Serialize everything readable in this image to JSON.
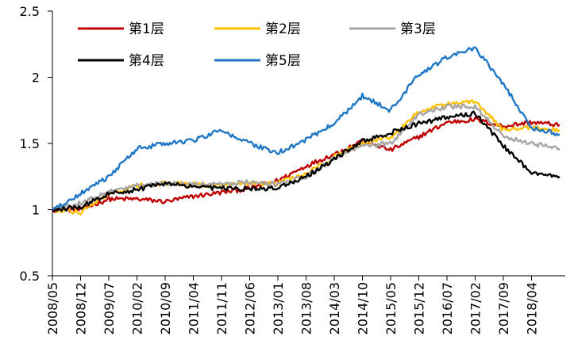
{
  "chart_data": {
    "type": "line",
    "title": "",
    "xlabel": "",
    "ylabel": "",
    "ylim": [
      0.5,
      2.5
    ],
    "yticks": [
      "0.5",
      "1",
      "1.5",
      "2",
      "2.5"
    ],
    "xticks": [
      "2008/05",
      "2008/12",
      "2009/07",
      "2010/02",
      "2010/09",
      "2011/04",
      "2011/11",
      "2012/06",
      "2013/01",
      "2013/08",
      "2014/03",
      "2014/10",
      "2015/05",
      "2015/12",
      "2016/07",
      "2017/02",
      "2017/09",
      "2018/04"
    ],
    "grid": false,
    "legend_position": "top",
    "x": [
      "2008/05",
      "2008/12",
      "2009/07",
      "2010/02",
      "2010/09",
      "2011/04",
      "2011/11",
      "2012/06",
      "2013/01",
      "2013/08",
      "2014/03",
      "2014/10",
      "2015/05",
      "2015/12",
      "2016/07",
      "2017/02",
      "2017/09",
      "2018/04",
      "2018/10"
    ],
    "series": [
      {
        "name": "第1层",
        "color": "#c00000",
        "values": [
          1.0,
          1.0,
          1.08,
          1.08,
          1.06,
          1.1,
          1.13,
          1.16,
          1.22,
          1.33,
          1.42,
          1.52,
          1.45,
          1.55,
          1.66,
          1.68,
          1.63,
          1.66,
          1.64
        ]
      },
      {
        "name": "第2层",
        "color": "#ffc000",
        "values": [
          1.0,
          0.98,
          1.12,
          1.18,
          1.2,
          1.19,
          1.18,
          1.2,
          1.2,
          1.27,
          1.4,
          1.5,
          1.55,
          1.74,
          1.8,
          1.82,
          1.6,
          1.62,
          1.6
        ]
      },
      {
        "name": "第3层",
        "color": "#a6a6a6",
        "values": [
          1.0,
          1.05,
          1.13,
          1.18,
          1.2,
          1.19,
          1.19,
          1.21,
          1.19,
          1.25,
          1.39,
          1.48,
          1.5,
          1.72,
          1.78,
          1.78,
          1.55,
          1.5,
          1.46
        ]
      },
      {
        "name": "第4层",
        "color": "#000000",
        "values": [
          1.0,
          1.02,
          1.12,
          1.15,
          1.2,
          1.17,
          1.16,
          1.16,
          1.16,
          1.25,
          1.38,
          1.52,
          1.58,
          1.65,
          1.7,
          1.73,
          1.48,
          1.28,
          1.25
        ]
      },
      {
        "name": "第5层",
        "color": "#1f77c6",
        "values": [
          1.0,
          1.12,
          1.25,
          1.46,
          1.5,
          1.52,
          1.6,
          1.5,
          1.43,
          1.53,
          1.65,
          1.86,
          1.75,
          2.02,
          2.15,
          2.22,
          1.95,
          1.62,
          1.57
        ]
      }
    ]
  }
}
